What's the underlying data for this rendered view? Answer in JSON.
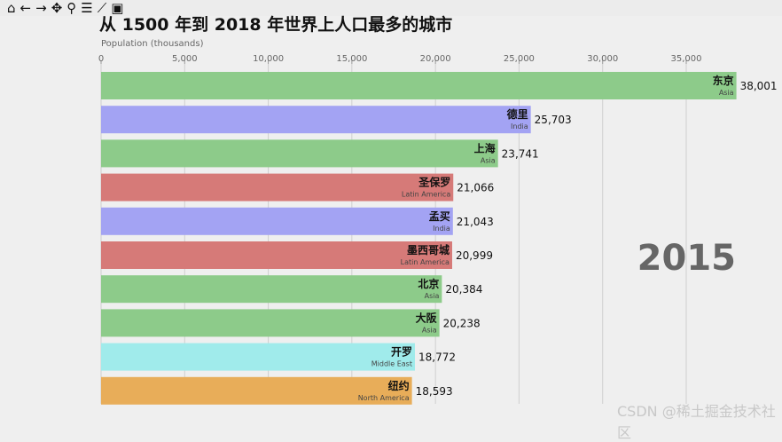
{
  "toolbar": {
    "icons": [
      "home-icon",
      "back-icon",
      "forward-icon",
      "pan-icon",
      "zoom-icon",
      "configure-subplots-icon",
      "edit-axis-icon",
      "save-icon"
    ]
  },
  "watermark": "CSDN @稀土掘金技术社区",
  "chart_data": {
    "type": "bar",
    "orientation": "horizontal",
    "title": "从 1500 年到 2018 年世界上人口最多的城市",
    "xlabel": "Population (thousands)",
    "xlim": [
      0,
      38001
    ],
    "xticks": [
      0,
      5000,
      10000,
      15000,
      20000,
      25000,
      30000,
      35000
    ],
    "xtick_labels": [
      "0",
      "5,000",
      "10,000",
      "15,000",
      "20,000",
      "25,000",
      "30,000",
      "35,000"
    ],
    "grid": true,
    "year_label": "2015",
    "bars": [
      {
        "city": "东京",
        "group": "Asia",
        "value": 38001,
        "label": "38,001",
        "color": "#8dcb8a"
      },
      {
        "city": "德里",
        "group": "India",
        "value": 25703,
        "label": "25,703",
        "color": "#a3a3f3"
      },
      {
        "city": "上海",
        "group": "Asia",
        "value": 23741,
        "label": "23,741",
        "color": "#8dcb8a"
      },
      {
        "city": "圣保罗",
        "group": "Latin America",
        "value": 21066,
        "label": "21,066",
        "color": "#d67a78"
      },
      {
        "city": "孟买",
        "group": "India",
        "value": 21043,
        "label": "21,043",
        "color": "#a3a3f3"
      },
      {
        "city": "墨西哥城",
        "group": "Latin America",
        "value": 20999,
        "label": "20,999",
        "color": "#d67a78"
      },
      {
        "city": "北京",
        "group": "Asia",
        "value": 20384,
        "label": "20,384",
        "color": "#8dcb8a"
      },
      {
        "city": "大阪",
        "group": "Asia",
        "value": 20238,
        "label": "20,238",
        "color": "#8dcb8a"
      },
      {
        "city": "开罗",
        "group": "Middle East",
        "value": 18772,
        "label": "18,772",
        "color": "#a0ebeb"
      },
      {
        "city": "纽约",
        "group": "North America",
        "value": 18593,
        "label": "18,593",
        "color": "#e8ad59"
      }
    ]
  }
}
